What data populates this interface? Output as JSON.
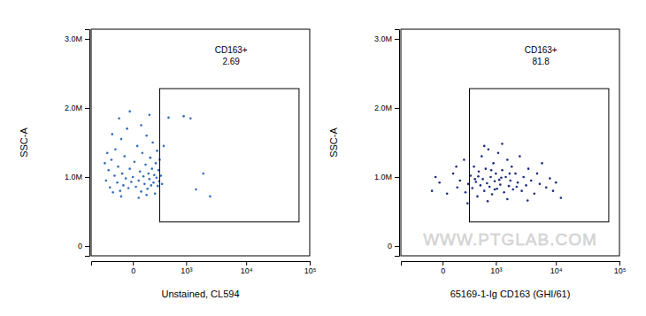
{
  "chart_data": [
    {
      "type": "scatter",
      "log": "x",
      "xlabel": "Unstained, CL594",
      "ylabel": "SSC-A",
      "color": "#2f6bbf",
      "xlim": [
        -600,
        100000
      ],
      "ylim": [
        -140000,
        3140000
      ],
      "xticks": [
        0,
        {
          "value": 1000,
          "label": "10³"
        },
        {
          "value": 10000,
          "label": "10⁴"
        },
        {
          "value": 100000,
          "label": "10⁵"
        }
      ],
      "yticks": [
        0,
        {
          "value": 1000000,
          "label": "1.0M"
        },
        {
          "value": 2000000,
          "label": "2.0M"
        },
        {
          "value": 3000000,
          "label": "3.0M"
        }
      ],
      "gate": {
        "label": "CD163+",
        "percent": 2.69,
        "x": [
          280,
          68000
        ],
        "y": [
          350000,
          2280000
        ]
      },
      "x": [
        -280,
        -240,
        -220,
        -200,
        -180,
        -160,
        -150,
        -130,
        -120,
        -100,
        -90,
        -80,
        -70,
        -60,
        -50,
        -40,
        -30,
        -20,
        -10,
        0,
        10,
        20,
        30,
        40,
        50,
        60,
        70,
        80,
        90,
        100,
        110,
        120,
        130,
        140,
        150,
        160,
        170,
        180,
        190,
        200,
        210,
        220,
        230,
        240,
        250,
        260,
        270,
        280,
        300,
        320,
        -260,
        -190,
        -110,
        -20,
        60,
        140,
        -300,
        -90,
        40,
        110,
        450,
        900,
        1200,
        1500,
        2600,
        2000,
        350
      ],
      "values": [
        950000,
        1100000,
        850000,
        1250000,
        780000,
        1020000,
        1400000,
        920000,
        1150000,
        800000,
        1550000,
        1050000,
        880000,
        1300000,
        980000,
        1700000,
        840000,
        1120000,
        930000,
        1000000,
        1220000,
        860000,
        1450000,
        950000,
        1080000,
        790000,
        1350000,
        1010000,
        900000,
        1180000,
        1600000,
        830000,
        1050000,
        970000,
        1280000,
        880000,
        1120000,
        1500000,
        920000,
        1030000,
        760000,
        1200000,
        990000,
        1380000,
        870000,
        1100000,
        940000,
        1250000,
        1020000,
        900000,
        1350000,
        1620000,
        1850000,
        1950000,
        1750000,
        1900000,
        1200000,
        720000,
        700000,
        740000,
        1860000,
        1880000,
        1850000,
        820000,
        720000,
        1050000,
        1450000
      ]
    },
    {
      "type": "scatter",
      "log": "x",
      "xlabel": "65169-1-Ig CD163 (GHI/61)",
      "ylabel": "SSC-A",
      "color": "#1c2a80",
      "xlim": [
        -600,
        100000
      ],
      "ylim": [
        -140000,
        3140000
      ],
      "xticks": [
        0,
        {
          "value": 1000,
          "label": "10³"
        },
        {
          "value": 10000,
          "label": "10⁴"
        },
        {
          "value": 100000,
          "label": "10⁵"
        }
      ],
      "yticks": [
        0,
        {
          "value": 1000000,
          "label": "1.0M"
        },
        {
          "value": 2000000,
          "label": "2.0M"
        },
        {
          "value": 3000000,
          "label": "3.0M"
        }
      ],
      "gate": {
        "label": "CD163+",
        "percent": 81.8,
        "x": [
          280,
          68000
        ],
        "y": [
          350000,
          2280000
        ]
      },
      "annotations": [
        {
          "text": "WWW.PTGLAB.COM"
        }
      ],
      "x": [
        -80,
        -20,
        30,
        80,
        120,
        150,
        200,
        220,
        260,
        300,
        330,
        360,
        400,
        430,
        460,
        500,
        530,
        560,
        600,
        640,
        680,
        720,
        760,
        800,
        850,
        900,
        950,
        1000,
        1050,
        1100,
        1150,
        1200,
        1300,
        1400,
        1500,
        1600,
        1700,
        1800,
        1900,
        2000,
        2200,
        2400,
        2600,
        2800,
        3000,
        3300,
        3600,
        4000,
        4500,
        5000,
        5500,
        6000,
        7000,
        8000,
        9000,
        600,
        1300,
        250,
        700,
        1600,
        3500,
        450,
        950,
        1250,
        1750,
        2300,
        380,
        820,
        110,
        -50,
        10000,
        12000
      ],
      "values": [
        800000,
        920000,
        760000,
        1050000,
        850000,
        950000,
        1250000,
        780000,
        900000,
        1020000,
        840000,
        1150000,
        930000,
        720000,
        1080000,
        880000,
        1300000,
        970000,
        800000,
        1120000,
        910000,
        1400000,
        860000,
        1000000,
        750000,
        1200000,
        940000,
        1050000,
        830000,
        1350000,
        960000,
        890000,
        1100000,
        780000,
        1000000,
        1250000,
        870000,
        950000,
        1150000,
        820000,
        1050000,
        920000,
        1300000,
        800000,
        1000000,
        880000,
        1120000,
        950000,
        760000,
        1050000,
        900000,
        1200000,
        850000,
        980000,
        800000,
        1450000,
        1480000,
        620000,
        650000,
        680000,
        660000,
        1010000,
        820000,
        990000,
        1050000,
        860000,
        970000,
        1100000,
        1150000,
        1000000,
        920000,
        700000
      ]
    }
  ]
}
